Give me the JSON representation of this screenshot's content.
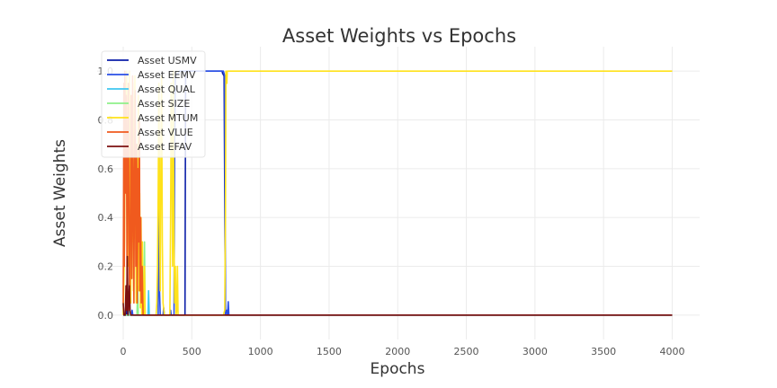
{
  "chart_data": {
    "type": "line",
    "title": "Asset Weights vs Epochs",
    "xlabel": "Epochs",
    "ylabel": "Asset Weights",
    "xlim": [
      -190,
      4200
    ],
    "ylim": [
      -0.1,
      1.1
    ],
    "x_ticks": [
      0,
      500,
      1000,
      1500,
      2000,
      2500,
      3000,
      3500,
      4000
    ],
    "y_ticks": [
      0.0,
      0.2,
      0.4,
      0.6,
      0.8,
      1.0
    ],
    "x_tick_labels": [
      "0",
      "500",
      "1000",
      "1500",
      "2000",
      "2500",
      "3000",
      "3500",
      "4000"
    ],
    "y_tick_labels": [
      "0.0",
      "0.2",
      "0.4",
      "0.6",
      "0.8",
      "1.0"
    ],
    "grid": true,
    "legend_position": "top-left",
    "series": [
      {
        "name": "Asset USMV",
        "color": "#0b1ea8",
        "points": [
          [
            0,
            0
          ],
          [
            20,
            0
          ],
          [
            25,
            0.02
          ],
          [
            30,
            0
          ],
          [
            450,
            0
          ],
          [
            455,
            1.0
          ],
          [
            720,
            1.0
          ],
          [
            725,
            0.99
          ],
          [
            735,
            0.98
          ],
          [
            740,
            0.5
          ],
          [
            745,
            0
          ],
          [
            4000,
            0
          ]
        ]
      },
      {
        "name": "Asset EEMV",
        "color": "#2a4fe6",
        "points": [
          [
            0,
            0
          ],
          [
            60,
            0
          ],
          [
            65,
            0.02
          ],
          [
            70,
            0
          ],
          [
            255,
            0
          ],
          [
            260,
            0.85
          ],
          [
            265,
            0.1
          ],
          [
            270,
            0
          ],
          [
            290,
            0
          ],
          [
            295,
            0.03
          ],
          [
            300,
            0
          ],
          [
            340,
            0
          ],
          [
            345,
            0.02
          ],
          [
            350,
            0
          ],
          [
            370,
            0
          ],
          [
            375,
            0.7
          ],
          [
            380,
            0.98
          ],
          [
            390,
            0.99
          ],
          [
            400,
            0.99
          ],
          [
            410,
            1.0
          ],
          [
            720,
            1.0
          ],
          [
            730,
            1.0
          ],
          [
            735,
            0.99
          ],
          [
            740,
            0.98
          ],
          [
            745,
            0.0
          ],
          [
            755,
            0.02
          ],
          [
            760,
            0.0
          ],
          [
            765,
            0.055
          ],
          [
            770,
            0
          ],
          [
            4000,
            0
          ]
        ]
      },
      {
        "name": "Asset QUAL",
        "color": "#3ec7f0",
        "points": [
          [
            0,
            0
          ],
          [
            40,
            0
          ],
          [
            45,
            0.15
          ],
          [
            50,
            0.02
          ],
          [
            55,
            0
          ],
          [
            180,
            0
          ],
          [
            185,
            0.1
          ],
          [
            190,
            0
          ],
          [
            4000,
            0
          ]
        ]
      },
      {
        "name": "Asset SIZE",
        "color": "#8ef08a",
        "points": [
          [
            0,
            0
          ],
          [
            100,
            0
          ],
          [
            105,
            0.12
          ],
          [
            110,
            0
          ],
          [
            150,
            0
          ],
          [
            155,
            0.3
          ],
          [
            160,
            0
          ],
          [
            4000,
            0
          ]
        ]
      },
      {
        "name": "Asset MTUM",
        "color": "#ffe21a",
        "points": [
          [
            0,
            0
          ],
          [
            10,
            0.3
          ],
          [
            15,
            0.95
          ],
          [
            20,
            0.6
          ],
          [
            25,
            1.0
          ],
          [
            30,
            0.4
          ],
          [
            35,
            0.9
          ],
          [
            40,
            0.2
          ],
          [
            45,
            1.0
          ],
          [
            50,
            0.55
          ],
          [
            55,
            0.05
          ],
          [
            60,
            0.85
          ],
          [
            65,
            0.3
          ],
          [
            70,
            0.95
          ],
          [
            75,
            0.1
          ],
          [
            80,
            0.7
          ],
          [
            85,
            0.98
          ],
          [
            90,
            0.4
          ],
          [
            95,
            0.05
          ],
          [
            100,
            0.6
          ],
          [
            105,
            0.2
          ],
          [
            110,
            0.9
          ],
          [
            115,
            0.1
          ],
          [
            120,
            0.5
          ],
          [
            125,
            0.03
          ],
          [
            130,
            0.4
          ],
          [
            135,
            0.0
          ],
          [
            140,
            0.3
          ],
          [
            145,
            0.0
          ],
          [
            150,
            0.0
          ],
          [
            155,
            0.2
          ],
          [
            160,
            0.0
          ],
          [
            240,
            0
          ],
          [
            245,
            0.05
          ],
          [
            250,
            0.2
          ],
          [
            255,
            0.5
          ],
          [
            260,
            0.95
          ],
          [
            265,
            0.4
          ],
          [
            270,
            0.1
          ],
          [
            275,
            0.7
          ],
          [
            280,
            0.98
          ],
          [
            285,
            0.3
          ],
          [
            290,
            0.05
          ],
          [
            300,
            0
          ],
          [
            340,
            0
          ],
          [
            345,
            0.4
          ],
          [
            350,
            0.95
          ],
          [
            355,
            0.6
          ],
          [
            360,
            0.2
          ],
          [
            365,
            1.0
          ],
          [
            370,
            0.3
          ],
          [
            375,
            0.05
          ],
          [
            380,
            0.2
          ],
          [
            385,
            0.0
          ],
          [
            390,
            0.02
          ],
          [
            395,
            0.2
          ],
          [
            400,
            0.0
          ],
          [
            730,
            0
          ],
          [
            740,
            0.02
          ],
          [
            745,
            0.4
          ],
          [
            748,
            1.0
          ],
          [
            752,
            0.99
          ],
          [
            755,
            0.95
          ],
          [
            758,
            1.0
          ],
          [
            4000,
            1.0
          ]
        ]
      },
      {
        "name": "Asset VLUE",
        "color": "#f05a1e",
        "points": [
          [
            0,
            0.05
          ],
          [
            5,
            0.95
          ],
          [
            8,
            0.2
          ],
          [
            12,
            1.0
          ],
          [
            18,
            0.5
          ],
          [
            22,
            0.9
          ],
          [
            28,
            0.1
          ],
          [
            33,
            0.7
          ],
          [
            38,
            0.95
          ],
          [
            42,
            0.3
          ],
          [
            48,
            0.02
          ],
          [
            52,
            0.4
          ],
          [
            58,
            0.9
          ],
          [
            62,
            0.15
          ],
          [
            68,
            0.98
          ],
          [
            72,
            0.5
          ],
          [
            78,
            0.05
          ],
          [
            82,
            0.6
          ],
          [
            88,
            0.92
          ],
          [
            92,
            0.2
          ],
          [
            98,
            0.7
          ],
          [
            102,
            0.05
          ],
          [
            108,
            0.6
          ],
          [
            112,
            0.3
          ],
          [
            118,
            0.8
          ],
          [
            122,
            0.1
          ],
          [
            128,
            0.4
          ],
          [
            132,
            0.05
          ],
          [
            138,
            0.2
          ],
          [
            145,
            0.0
          ],
          [
            4000,
            0
          ]
        ]
      },
      {
        "name": "Asset EFAV",
        "color": "#7b1010",
        "points": [
          [
            0,
            0.05
          ],
          [
            5,
            0.0
          ],
          [
            15,
            0.0
          ],
          [
            20,
            0.12
          ],
          [
            25,
            0.02
          ],
          [
            30,
            0.24
          ],
          [
            35,
            0.0
          ],
          [
            40,
            0.05
          ],
          [
            45,
            0.12
          ],
          [
            50,
            0.02
          ],
          [
            55,
            0.0
          ],
          [
            4000,
            0
          ]
        ]
      }
    ]
  }
}
